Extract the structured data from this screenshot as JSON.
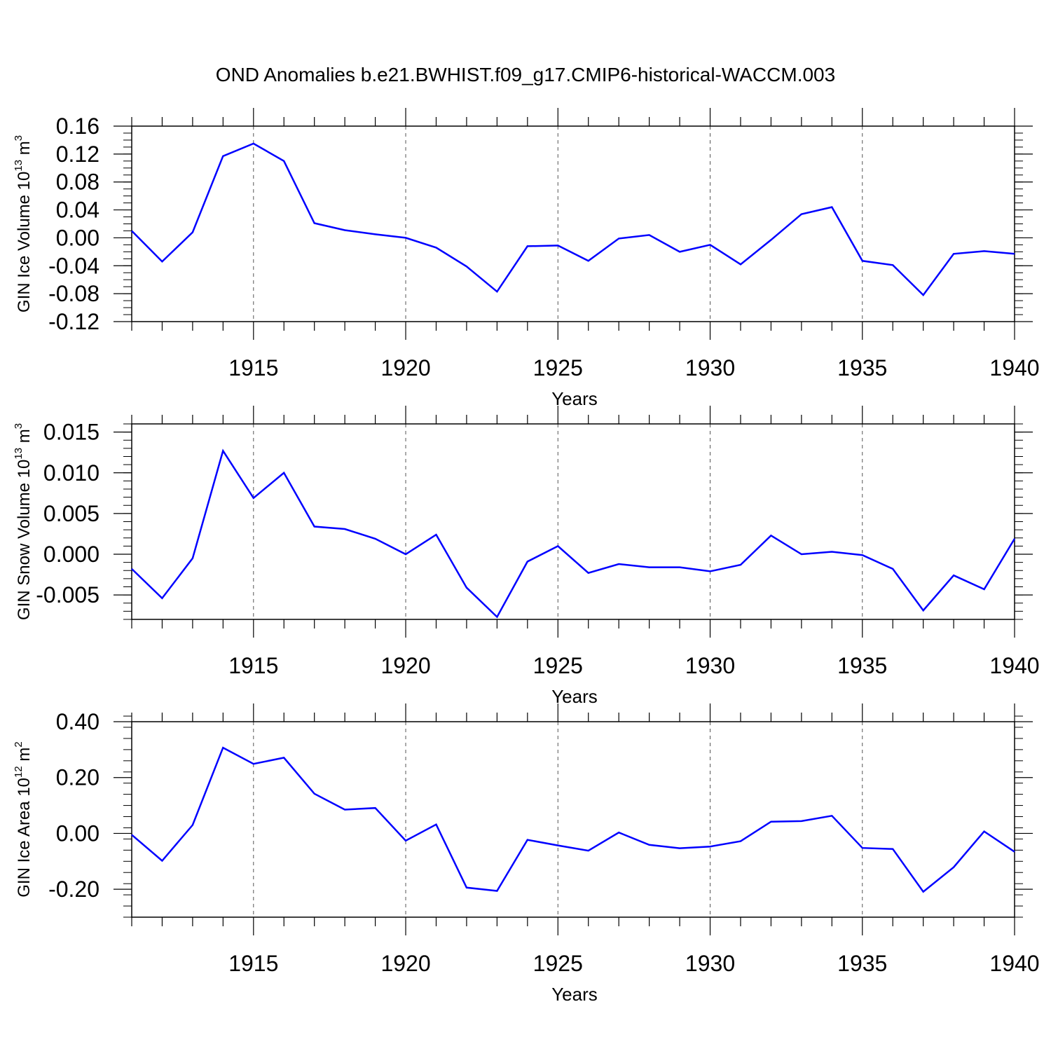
{
  "title": "OND Anomalies b.e21.BWHIST.f09_g17.CMIP6-historical-WACCM.003",
  "chart_data": [
    {
      "type": "line",
      "title": "OND Anomalies b.e21.BWHIST.f09_g17.CMIP6-historical-WACCM.003",
      "xlabel": "Years",
      "ylabel": {
        "text": "GIN Ice Volume 10",
        "sup": "13",
        "unit": " m",
        "unit_sup": "3"
      },
      "xlim": [
        1911,
        1940
      ],
      "ylim": [
        -0.12,
        0.16
      ],
      "x_ticks": [
        "1915",
        "1920",
        "1925",
        "1930",
        "1935",
        "1940"
      ],
      "y_ticks": [
        "0.16",
        "0.12",
        "0.08",
        "0.04",
        "0.00",
        "-0.04",
        "-0.08",
        "-0.12"
      ],
      "y_tick_values": [
        0.16,
        0.12,
        0.08,
        0.04,
        0.0,
        -0.04,
        -0.08,
        -0.12
      ],
      "y_minor_step": 0.01,
      "grid": "vertical dashed at major x ticks",
      "color": "#0000ff",
      "x": [
        1911,
        1912,
        1913,
        1914,
        1915,
        1916,
        1917,
        1918,
        1919,
        1920,
        1921,
        1922,
        1923,
        1924,
        1925,
        1926,
        1927,
        1928,
        1929,
        1930,
        1931,
        1932,
        1933,
        1934,
        1935,
        1936,
        1937,
        1938,
        1939,
        1940
      ],
      "y": [
        0.01,
        -0.034,
        0.008,
        0.117,
        0.135,
        0.11,
        0.021,
        0.011,
        0.005,
        0.0,
        -0.014,
        -0.041,
        -0.077,
        -0.012,
        -0.011,
        -0.033,
        -0.001,
        0.004,
        -0.02,
        -0.01,
        -0.038,
        -0.003,
        0.034,
        0.044,
        -0.033,
        -0.039,
        -0.082,
        -0.023,
        -0.019,
        -0.023
      ]
    },
    {
      "type": "line",
      "xlabel": "Years",
      "ylabel": {
        "text": "GIN Snow Volume 10",
        "sup": "13",
        "unit": " m",
        "unit_sup": "3"
      },
      "xlim": [
        1911,
        1940
      ],
      "ylim": [
        -0.008,
        0.016
      ],
      "x_ticks": [
        "1915",
        "1920",
        "1925",
        "1930",
        "1935",
        "1940"
      ],
      "y_ticks": [
        "0.015",
        "0.010",
        "0.005",
        "0.000",
        "-0.005"
      ],
      "y_tick_values": [
        0.015,
        0.01,
        0.005,
        0.0,
        -0.005
      ],
      "y_minor_step": 0.001,
      "grid": "vertical dashed at major x ticks",
      "color": "#0000ff",
      "x": [
        1911,
        1912,
        1913,
        1914,
        1915,
        1916,
        1917,
        1918,
        1919,
        1920,
        1921,
        1922,
        1923,
        1924,
        1925,
        1926,
        1927,
        1928,
        1929,
        1930,
        1931,
        1932,
        1933,
        1934,
        1935,
        1936,
        1937,
        1938,
        1939,
        1940
      ],
      "y": [
        -0.0018,
        -0.0054,
        -0.0005,
        0.0127,
        0.0069,
        0.01,
        0.0034,
        0.0031,
        0.0019,
        0.0,
        0.0024,
        -0.0041,
        -0.0077,
        -0.0009,
        0.001,
        -0.0023,
        -0.0012,
        -0.0016,
        -0.0016,
        -0.0021,
        -0.0013,
        0.0023,
        0.0,
        0.0003,
        -0.0001,
        -0.0018,
        -0.0069,
        -0.0026,
        -0.0043,
        0.0019
      ]
    },
    {
      "type": "line",
      "xlabel": "Years",
      "ylabel": {
        "text": "GIN Ice Area 10",
        "sup": "12",
        "unit": " m",
        "unit_sup": "2"
      },
      "xlim": [
        1911,
        1940
      ],
      "ylim": [
        -0.3,
        0.4
      ],
      "x_ticks": [
        "1915",
        "1920",
        "1925",
        "1930",
        "1935",
        "1940"
      ],
      "y_ticks": [
        "0.40",
        "0.20",
        "0.00",
        "-0.20"
      ],
      "y_tick_values": [
        0.4,
        0.2,
        0.0,
        -0.2
      ],
      "y_minor_step": 0.04,
      "grid": "vertical dashed at major x ticks",
      "color": "#0000ff",
      "x": [
        1911,
        1912,
        1913,
        1914,
        1915,
        1916,
        1917,
        1918,
        1919,
        1920,
        1921,
        1922,
        1923,
        1924,
        1925,
        1926,
        1927,
        1928,
        1929,
        1930,
        1931,
        1932,
        1933,
        1934,
        1935,
        1936,
        1937,
        1938,
        1939,
        1940
      ],
      "y": [
        -0.005,
        -0.098,
        0.03,
        0.307,
        0.249,
        0.271,
        0.142,
        0.085,
        0.091,
        -0.026,
        0.032,
        -0.194,
        -0.206,
        -0.023,
        -0.043,
        -0.062,
        0.003,
        -0.041,
        -0.053,
        -0.047,
        -0.028,
        0.042,
        0.044,
        0.063,
        -0.052,
        -0.056,
        -0.209,
        -0.121,
        0.007,
        -0.066
      ]
    }
  ]
}
